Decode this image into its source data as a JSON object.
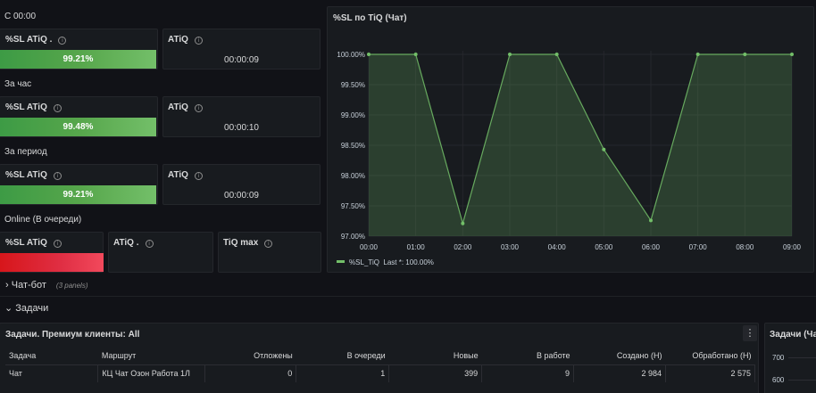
{
  "sections": {
    "s00": "С 00:00",
    "hour": "За час",
    "period": "За период",
    "online": "Online (В очереди)"
  },
  "stats": {
    "s00_sl": {
      "title": "%SL ATiQ .",
      "value": "99.21%",
      "fill_percent": 99.21
    },
    "s00_atiq": {
      "title": "ATiQ",
      "value": "00:00:09"
    },
    "hour_sl": {
      "title": "%SL ATiQ",
      "value": "99.48%",
      "fill_percent": 99.48
    },
    "hour_atiq": {
      "title": "ATiQ",
      "value": "00:00:10"
    },
    "period_sl": {
      "title": "%SL ATiQ",
      "value": "99.21%",
      "fill_percent": 99.21
    },
    "period_atiq": {
      "title": "ATiQ",
      "value": "00:00:09"
    },
    "online_sl": {
      "title": "%SL ATiQ"
    },
    "online_atiq": {
      "title": "ATiQ ."
    },
    "online_tiq": {
      "title": "TiQ max"
    }
  },
  "colors": {
    "green": "#73bf69",
    "red": "#f2495c",
    "background": "#111217",
    "panel": "#181b1f"
  },
  "chart_panel": {
    "title": "%SL по TiQ (Чат)"
  },
  "chart_data": {
    "type": "area",
    "x": [
      "00:00",
      "01:00",
      "02:00",
      "03:00",
      "04:00",
      "05:00",
      "06:00",
      "07:00",
      "08:00",
      "09:00"
    ],
    "series": [
      {
        "name": "%SL_TiQ",
        "values": [
          100.0,
          100.0,
          97.21,
          100.0,
          100.0,
          98.43,
          97.26,
          100.0,
          100.0,
          100.0
        ]
      }
    ],
    "yticks": [
      "100.00%",
      "99.50%",
      "99.00%",
      "98.50%",
      "98.00%",
      "97.50%",
      "97.00%"
    ],
    "ylim": [
      97.0,
      100.0
    ],
    "legend": {
      "label": "%SL_TiQ",
      "stat": "Last *: 100.00%"
    },
    "grid": true
  },
  "rows": {
    "chatbot": {
      "label": "Чат-бот",
      "count": "(3 panels)",
      "arrow": "›"
    },
    "tasks": {
      "label": "Задачи",
      "arrow": "⌄"
    }
  },
  "table_panel": {
    "title": "Задачи. Премиум клиенты: All",
    "menu": "⋮",
    "columns": [
      "Задача",
      "Маршрут",
      "Отложены",
      "В очереди",
      "Новые",
      "В работе",
      "Создано (Н)",
      "Обработано (Н)"
    ],
    "rows": [
      [
        "Чат",
        "КЦ Чат Озон Работа 1Л",
        "0",
        "1",
        "399",
        "9",
        "2 984",
        "2 575"
      ]
    ]
  },
  "side_panel": {
    "title": "Задачи (Ча",
    "yticks": [
      "700",
      "600"
    ]
  }
}
